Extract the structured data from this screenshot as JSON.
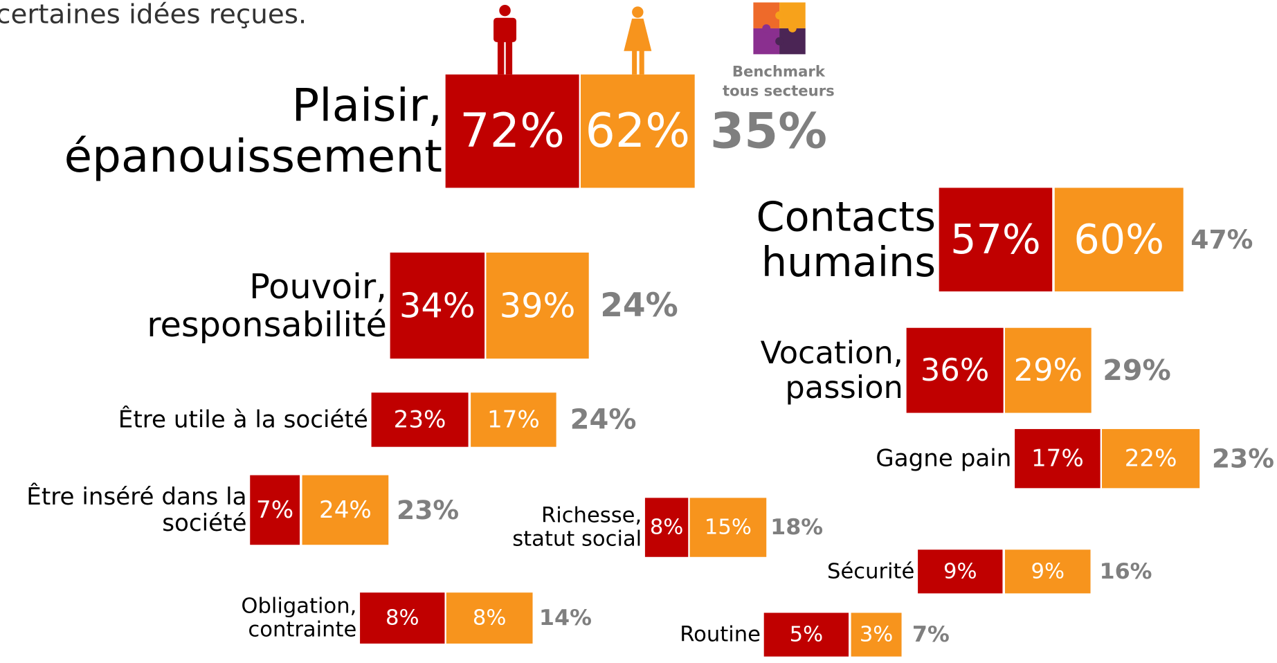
{
  "intro": "certaines idées reçues.",
  "benchmark_label": [
    "Benchmark",
    "tous secteurs"
  ],
  "items": [
    {
      "label": [
        "Plaisir,",
        "épanouissement"
      ],
      "men": "72%",
      "women": "62%",
      "benchmark": "35%"
    },
    {
      "label": [
        "Contacts",
        "humains"
      ],
      "men": "57%",
      "women": "60%",
      "benchmark": "47%"
    },
    {
      "label": [
        "Pouvoir,",
        "responsabilité"
      ],
      "men": "34%",
      "women": "39%",
      "benchmark": "24%"
    },
    {
      "label": [
        "Vocation,",
        "passion"
      ],
      "men": "36%",
      "women": "29%",
      "benchmark": "29%"
    },
    {
      "label": [
        "Être utile à la société"
      ],
      "men": "23%",
      "women": "17%",
      "benchmark": "24%"
    },
    {
      "label": [
        "Gagne pain"
      ],
      "men": "17%",
      "women": "22%",
      "benchmark": "23%"
    },
    {
      "label": [
        "Être inséré dans la",
        "société"
      ],
      "men": "7%",
      "women": "24%",
      "benchmark": "23%"
    },
    {
      "label": [
        "Richesse,",
        "statut social"
      ],
      "men": "8%",
      "women": "15%",
      "benchmark": "18%"
    },
    {
      "label": [
        "Sécurité"
      ],
      "men": "9%",
      "women": "9%",
      "benchmark": "16%"
    },
    {
      "label": [
        "Obligation,",
        "contrainte"
      ],
      "men": "8%",
      "women": "8%",
      "benchmark": "14%"
    },
    {
      "label": [
        "Routine"
      ],
      "men": "5%",
      "women": "3%",
      "benchmark": "7%"
    }
  ]
}
